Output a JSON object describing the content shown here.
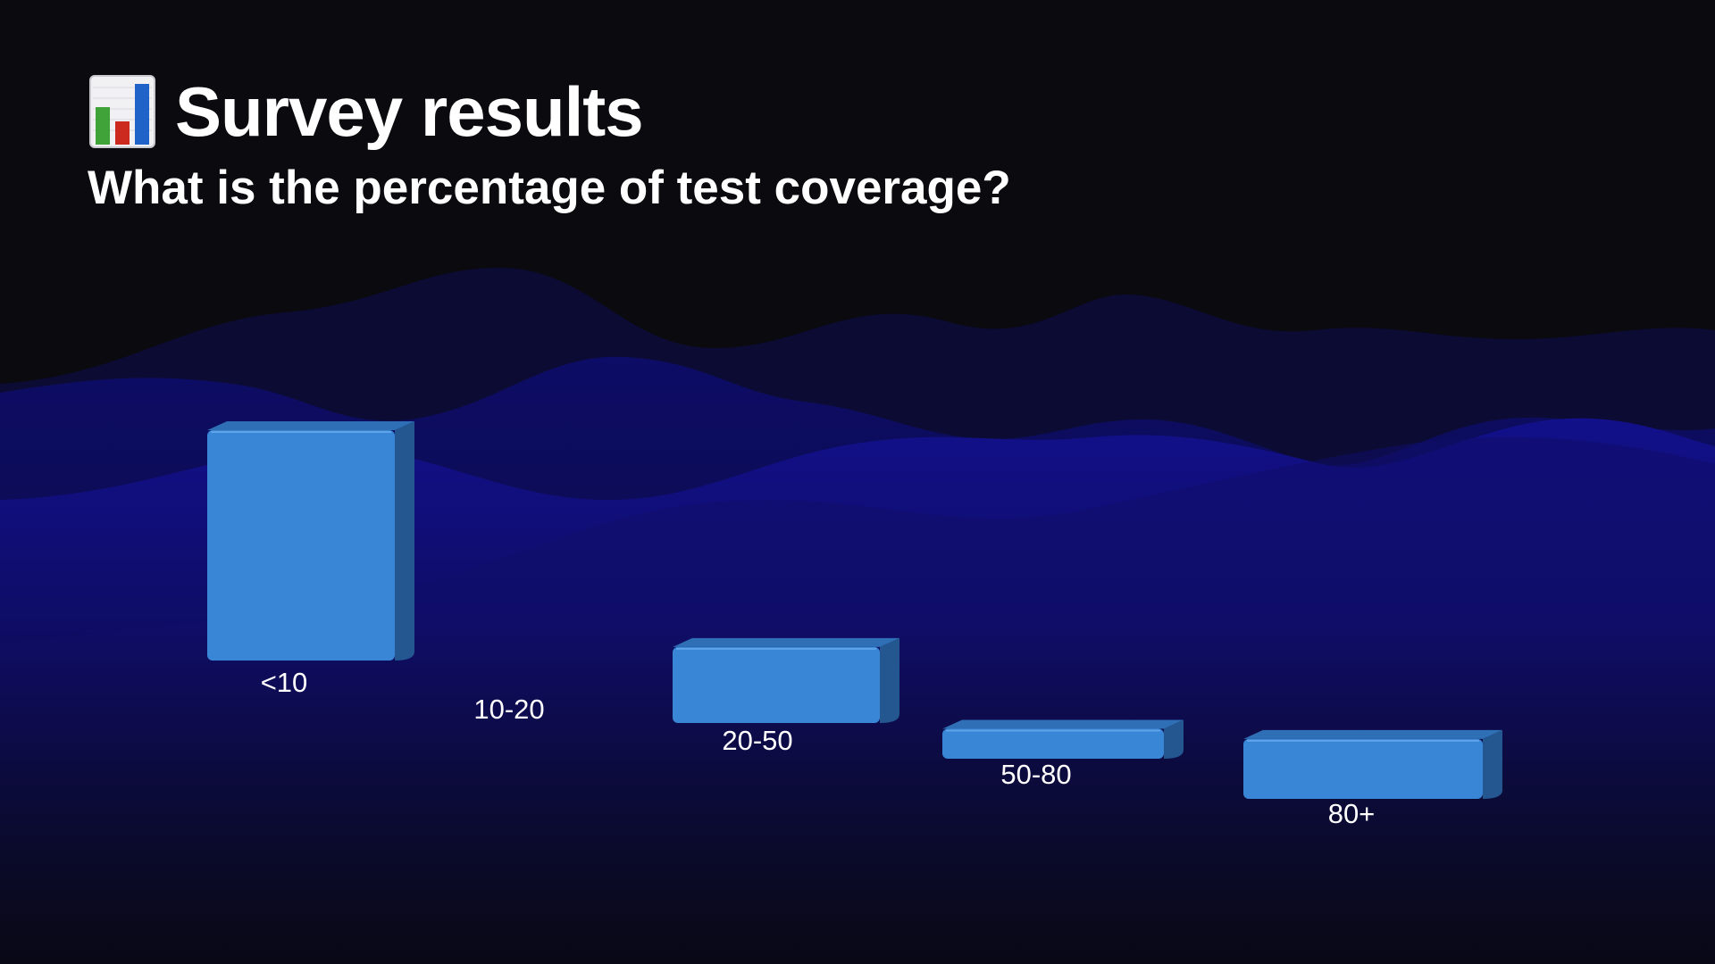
{
  "slide": {
    "icon": "bar-chart-emoji-icon",
    "title": "Survey results",
    "subtitle": "What is the percentage of test coverage?"
  },
  "colors": {
    "background": "#0a0a0f",
    "wave": "#14128a",
    "bar_front": "#3a86d6",
    "bar_top": "#2f6fb5",
    "bar_side": "#24578f"
  },
  "chart_data": {
    "type": "bar",
    "style": "3d",
    "title": "",
    "xlabel": "",
    "ylabel": "",
    "categories": [
      "<10",
      "10-20",
      "20-50",
      "50-80",
      "80+"
    ],
    "values": [
      100,
      0,
      33,
      13,
      26
    ],
    "grid": false,
    "legend": "none"
  }
}
